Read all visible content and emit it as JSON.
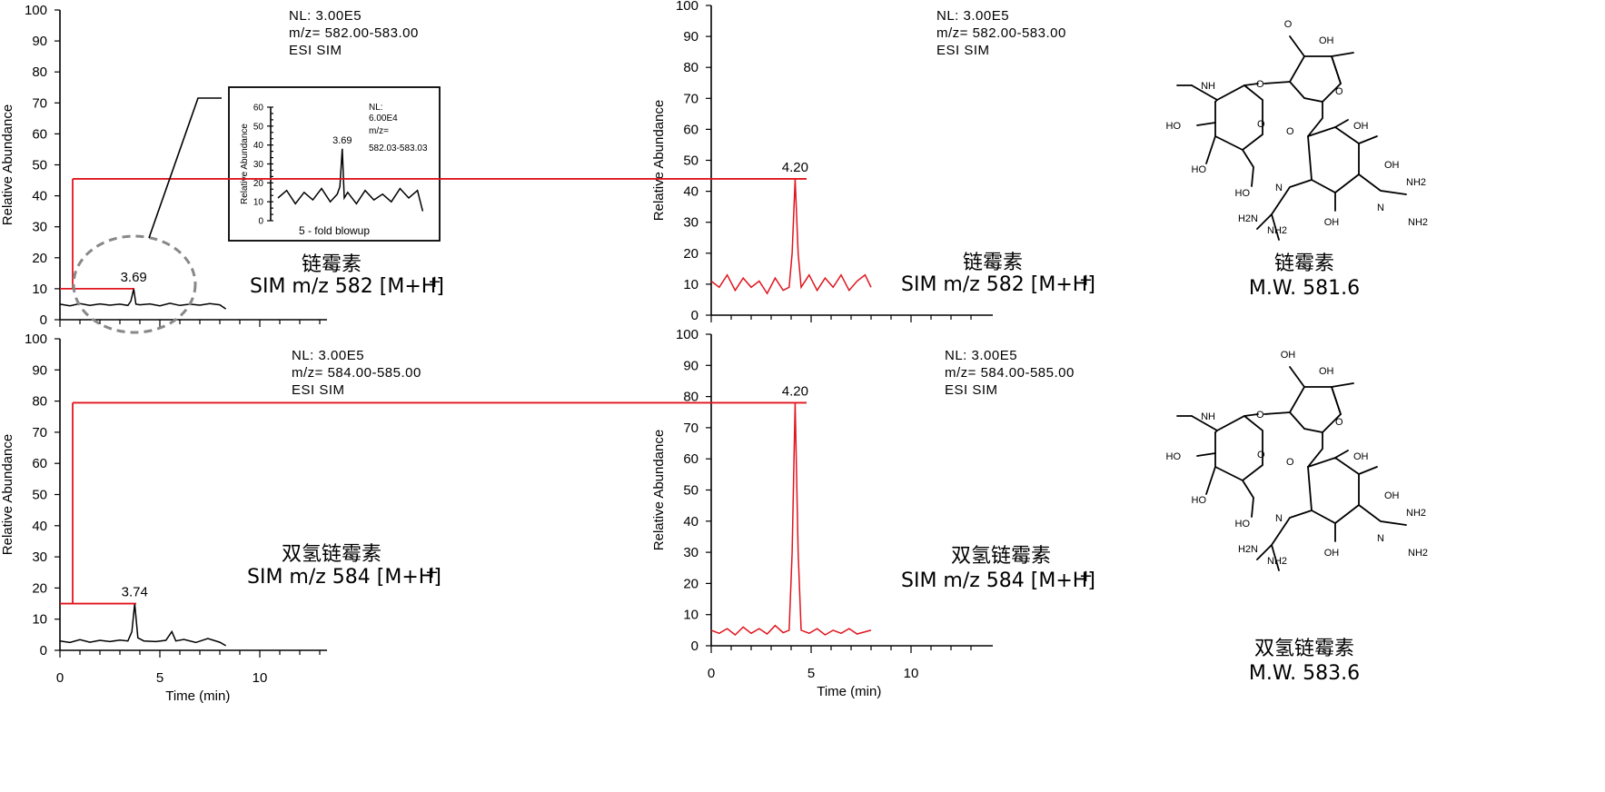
{
  "chart_data": [
    {
      "id": "p1",
      "type": "line",
      "info": [
        "NL: 3.00E5",
        "m/z= 582.00-583.00",
        "ESI SIM"
      ],
      "ylabel": "Relative Abundance",
      "xlabel": "",
      "ylim": [
        0,
        100
      ],
      "xlim": [
        0,
        13.5
      ],
      "yticks": [
        0,
        10,
        20,
        30,
        40,
        50,
        60,
        70,
        80,
        90,
        100
      ],
      "xticks": [],
      "series_color": "#000000",
      "compound": "链霉素",
      "compound_sub": "SIM m/z 582 [M+H]",
      "compound_sup": "+",
      "peak": {
        "x": 3.69,
        "y": 10,
        "label": "3.69"
      },
      "x": [
        0,
        0.5,
        1,
        1.5,
        2,
        2.5,
        3,
        3.4,
        3.55,
        3.69,
        3.8,
        4,
        4.5,
        5,
        5.5,
        6,
        6.5,
        7,
        7.5,
        8,
        8.3
      ],
      "y": [
        5,
        4.5,
        5.2,
        4.6,
        5.1,
        4.7,
        5,
        4.6,
        6,
        10,
        5,
        4.8,
        5.1,
        4.5,
        5.3,
        4.6,
        5,
        4.7,
        5.2,
        4.8,
        3.5
      ]
    },
    {
      "id": "p1inset",
      "type": "line",
      "info": [
        "NL:",
        "6.00E4",
        "m/z=",
        "582.03-583.03"
      ],
      "ylabel": "Relative Abundance",
      "xlabel": "5 - fold blowup",
      "ylim": [
        0,
        60
      ],
      "yticks": [
        0,
        10,
        20,
        30,
        40,
        50,
        60
      ],
      "peak": {
        "x": 3.69,
        "y": 38,
        "label": "3.69"
      },
      "x": [
        0,
        0.5,
        1,
        1.5,
        2,
        2.5,
        3,
        3.4,
        3.55,
        3.69,
        3.8,
        4,
        4.5,
        5,
        5.5,
        6,
        6.5,
        7,
        7.5,
        8,
        8.3
      ],
      "y": [
        12,
        16,
        9,
        15,
        11,
        17,
        10,
        14,
        18,
        38,
        12,
        15,
        9,
        16,
        11,
        14,
        10,
        17,
        12,
        16,
        5
      ]
    },
    {
      "id": "p2",
      "type": "line",
      "info": [
        "NL: 3.00E5",
        "m/z= 582.00-583.00",
        "ESI SIM"
      ],
      "ylabel": "Relative Abundance",
      "xlabel": "",
      "ylim": [
        0,
        100
      ],
      "xlim": [
        0,
        13.5
      ],
      "yticks": [
        0,
        10,
        20,
        30,
        40,
        50,
        60,
        70,
        80,
        90,
        100
      ],
      "xticks": [],
      "series_color": "#e0141e",
      "compound": "链霉素",
      "compound_sub": "SIM m/z 582 [M+H]",
      "compound_sup": "+",
      "peak": {
        "x": 4.2,
        "y": 44,
        "label": "4.20"
      },
      "x": [
        0,
        0.4,
        0.8,
        1.2,
        1.6,
        2,
        2.4,
        2.8,
        3.2,
        3.6,
        3.9,
        4.05,
        4.2,
        4.35,
        4.5,
        4.9,
        5.3,
        5.7,
        6.1,
        6.5,
        6.9,
        7.3,
        7.7,
        8
      ],
      "y": [
        11,
        9,
        13,
        8,
        12,
        9,
        11,
        7,
        12,
        8,
        9,
        20,
        44,
        20,
        9,
        13,
        8,
        12,
        9,
        13,
        8,
        11,
        13,
        9
      ]
    },
    {
      "id": "p3",
      "type": "line",
      "info": [
        "NL: 3.00E5",
        "m/z= 584.00-585.00",
        "ESI SIM"
      ],
      "ylabel": "Relative Abundance",
      "xlabel": "Time (min)",
      "ylim": [
        0,
        100
      ],
      "xlim": [
        0,
        13.5
      ],
      "yticks": [
        0,
        10,
        20,
        30,
        40,
        50,
        60,
        70,
        80,
        90,
        100
      ],
      "xticks": [
        0,
        5,
        10
      ],
      "series_color": "#000000",
      "compound": "双氢链霉素",
      "compound_sub": "SIM m/z 584 [M+H]",
      "compound_sup": "+",
      "peak": {
        "x": 3.74,
        "y": 15,
        "label": "3.74"
      },
      "x": [
        0,
        0.5,
        1,
        1.5,
        2,
        2.5,
        3,
        3.4,
        3.6,
        3.74,
        3.9,
        4.2,
        4.8,
        5.3,
        5.6,
        5.8,
        6.2,
        6.8,
        7.4,
        8,
        8.3
      ],
      "y": [
        3,
        2.5,
        3.4,
        2.6,
        3.2,
        2.8,
        3.3,
        3,
        6,
        15,
        4,
        3,
        2.8,
        3.2,
        6,
        3,
        3.5,
        2.5,
        3.8,
        2.6,
        1.5
      ]
    },
    {
      "id": "p4",
      "type": "line",
      "info": [
        "NL: 3.00E5",
        "m/z= 584.00-585.00",
        "ESI SIM"
      ],
      "ylabel": "Relative Abundance",
      "xlabel": "Time (min)",
      "ylim": [
        0,
        100
      ],
      "xlim": [
        0,
        13.5
      ],
      "yticks": [
        0,
        10,
        20,
        30,
        40,
        50,
        60,
        70,
        80,
        90,
        100
      ],
      "xticks": [
        0,
        5,
        10
      ],
      "series_color": "#e0141e",
      "compound": "双氢链霉素",
      "compound_sub": "SIM m/z 584 [M+H]",
      "compound_sup": "+",
      "peak": {
        "x": 4.2,
        "y": 78,
        "label": "4.20"
      },
      "x": [
        0,
        0.4,
        0.8,
        1.2,
        1.6,
        2,
        2.4,
        2.8,
        3.2,
        3.6,
        3.9,
        4.05,
        4.2,
        4.35,
        4.5,
        4.9,
        5.3,
        5.7,
        6.1,
        6.5,
        6.9,
        7.3,
        7.7,
        8
      ],
      "y": [
        5,
        4,
        5.5,
        3.5,
        6,
        4,
        5.5,
        3.8,
        6.5,
        4.2,
        5,
        30,
        78,
        30,
        5,
        4,
        5.5,
        3.5,
        5,
        4,
        5.5,
        3.8,
        4.5,
        5
      ]
    }
  ],
  "structures": [
    {
      "name": "链霉素",
      "mw": "M.W. 581.6"
    },
    {
      "name": "双氢链霉素",
      "mw": "M.W. 583.6"
    }
  ],
  "atoms": [
    "NH",
    "OH",
    "HO",
    "O",
    "H2N",
    "NH2",
    "N"
  ],
  "colors": {
    "red": "#e0141e",
    "black": "#000000",
    "circle": "#888888"
  }
}
